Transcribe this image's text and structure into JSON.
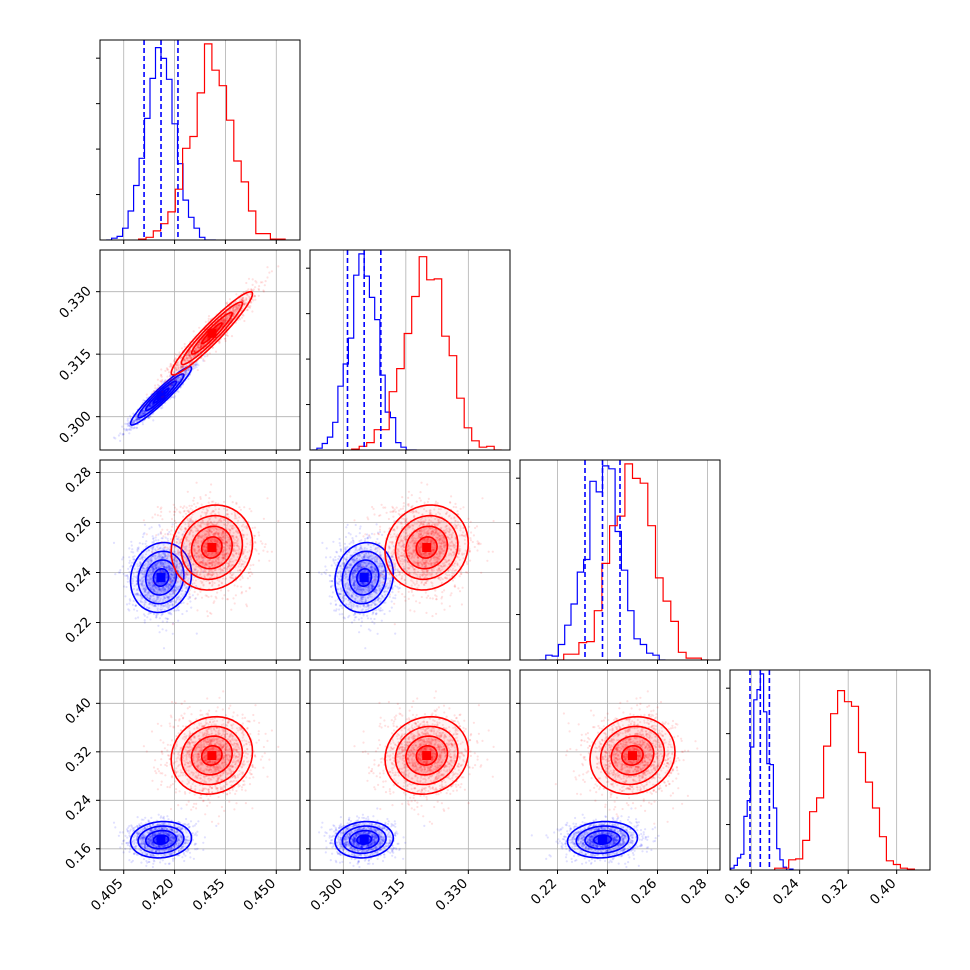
{
  "chart_data": {
    "type": "corner",
    "series": [
      {
        "color": "#0000ff",
        "dims": [
          {
            "mean": 0.416,
            "sd": 0.0045,
            "q16": 0.411,
            "q50": 0.416,
            "q84": 0.421
          },
          {
            "mean": 0.305,
            "sd": 0.0035,
            "q16": 0.301,
            "q50": 0.305,
            "q84": 0.309
          },
          {
            "mean": 0.238,
            "sd": 0.007,
            "q16": 0.231,
            "q50": 0.238,
            "q84": 0.245
          },
          {
            "mean": 0.175,
            "sd": 0.015,
            "q16": 0.158,
            "q50": 0.175,
            "q84": 0.19
          }
        ],
        "corr": [
          [
            1,
            0.95,
            0.1,
            0.1
          ],
          [
            0.95,
            1,
            0.1,
            0.1
          ],
          [
            0.1,
            0.1,
            1,
            0.1
          ],
          [
            0.1,
            0.1,
            0.1,
            1
          ]
        ]
      },
      {
        "color": "#ff0000",
        "dims": [
          {
            "mean": 0.431,
            "sd": 0.006
          },
          {
            "mean": 0.32,
            "sd": 0.005
          },
          {
            "mean": 0.25,
            "sd": 0.0085
          },
          {
            "mean": 0.314,
            "sd": 0.032
          }
        ],
        "corr": [
          [
            1,
            0.95,
            0.1,
            0.1
          ],
          [
            0.95,
            1,
            0.1,
            0.1
          ],
          [
            0.1,
            0.1,
            1,
            0.1
          ],
          [
            0.1,
            0.1,
            0.1,
            1
          ]
        ]
      }
    ],
    "quantile_lines_series": 0,
    "axes": [
      {
        "range": [
          0.398,
          0.457
        ],
        "ticks": [
          0.405,
          0.42,
          0.435,
          0.45
        ],
        "tick_labels": [
          "0.405",
          "0.420",
          "0.435",
          "0.450"
        ]
      },
      {
        "range": [
          0.292,
          0.34
        ],
        "ticks": [
          0.3,
          0.315,
          0.33
        ],
        "tick_labels": [
          "0.300",
          "0.315",
          "0.330"
        ]
      },
      {
        "range": [
          0.205,
          0.285
        ],
        "ticks": [
          0.22,
          0.24,
          0.26,
          0.28
        ],
        "tick_labels": [
          "0.22",
          "0.24",
          "0.26",
          "0.28"
        ]
      },
      {
        "range": [
          0.125,
          0.455
        ],
        "ticks": [
          0.16,
          0.24,
          0.32,
          0.4
        ],
        "tick_labels": [
          "0.16",
          "0.24",
          "0.32",
          "0.40"
        ]
      }
    ],
    "grid": true,
    "legend": "none"
  }
}
